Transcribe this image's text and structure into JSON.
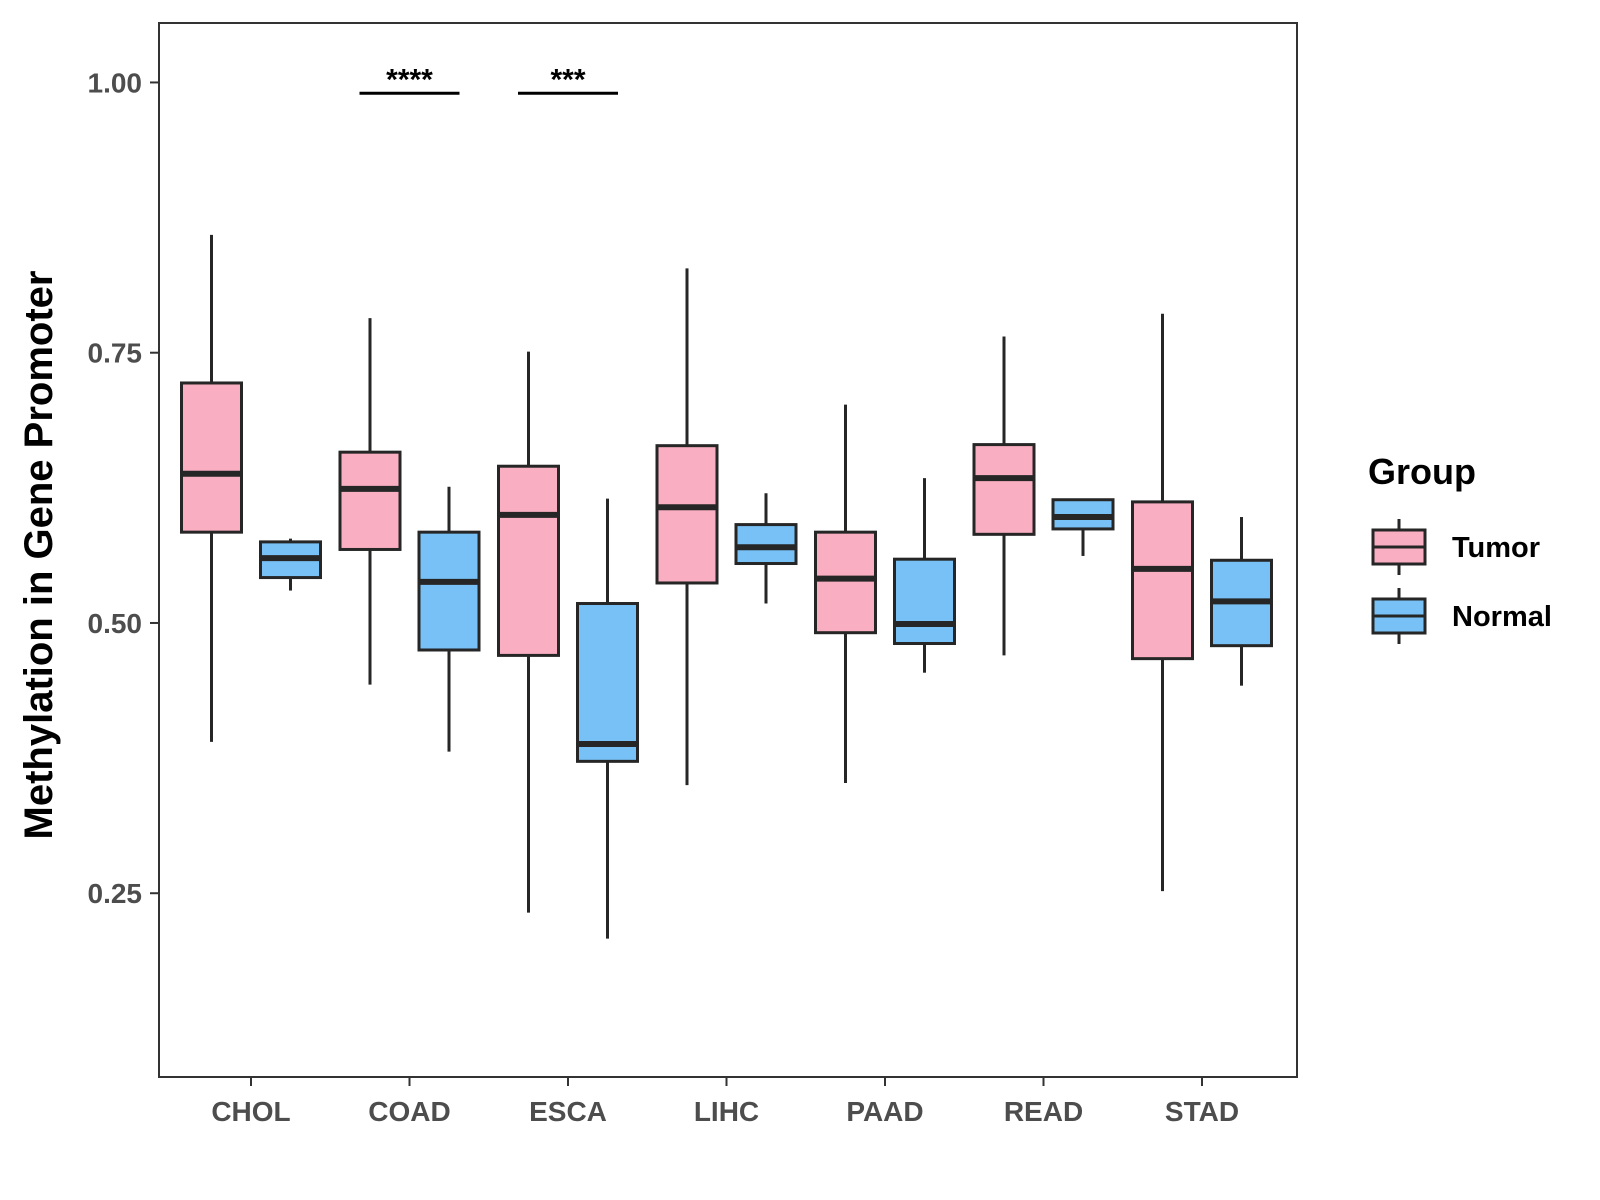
{
  "chart_data": {
    "type": "boxplot",
    "title": "",
    "xlabel": "",
    "ylabel": "Methylation in Gene Promoter",
    "ylim": [
      0.08,
      1.055
    ],
    "yticks": [
      0.25,
      0.5,
      0.75,
      1.0
    ],
    "ytick_labels": [
      "0.25",
      "0.50",
      "0.75",
      "1.00"
    ],
    "categories": [
      "CHOL",
      "COAD",
      "ESCA",
      "LIHC",
      "PAAD",
      "READ",
      "STAD"
    ],
    "legend": {
      "title": "Group",
      "position": "right",
      "entries": [
        "Tumor",
        "Normal"
      ]
    },
    "colors": {
      "Tumor": "#f9afc1",
      "Normal": "#77c1f7",
      "outline": "#262626"
    },
    "series": [
      {
        "name": "Tumor",
        "boxes": [
          {
            "category": "CHOL",
            "min": 0.39,
            "q1": 0.584,
            "median": 0.638,
            "q3": 0.722,
            "max": 0.859
          },
          {
            "category": "COAD",
            "min": 0.443,
            "q1": 0.568,
            "median": 0.624,
            "q3": 0.658,
            "max": 0.782
          },
          {
            "category": "ESCA",
            "min": 0.232,
            "q1": 0.47,
            "median": 0.6,
            "q3": 0.645,
            "max": 0.751
          },
          {
            "category": "LIHC",
            "min": 0.35,
            "q1": 0.537,
            "median": 0.607,
            "q3": 0.664,
            "max": 0.828
          },
          {
            "category": "PAAD",
            "min": 0.352,
            "q1": 0.491,
            "median": 0.541,
            "q3": 0.584,
            "max": 0.702
          },
          {
            "category": "READ",
            "min": 0.47,
            "q1": 0.582,
            "median": 0.634,
            "q3": 0.665,
            "max": 0.765
          },
          {
            "category": "STAD",
            "min": 0.252,
            "q1": 0.467,
            "median": 0.55,
            "q3": 0.612,
            "max": 0.786
          }
        ]
      },
      {
        "name": "Normal",
        "boxes": [
          {
            "category": "CHOL",
            "min": 0.53,
            "q1": 0.542,
            "median": 0.56,
            "q3": 0.575,
            "max": 0.578
          },
          {
            "category": "COAD",
            "min": 0.381,
            "q1": 0.475,
            "median": 0.538,
            "q3": 0.584,
            "max": 0.626
          },
          {
            "category": "ESCA",
            "min": 0.208,
            "q1": 0.372,
            "median": 0.388,
            "q3": 0.518,
            "max": 0.615
          },
          {
            "category": "LIHC",
            "min": 0.518,
            "q1": 0.555,
            "median": 0.57,
            "q3": 0.591,
            "max": 0.62
          },
          {
            "category": "PAAD",
            "min": 0.454,
            "q1": 0.481,
            "median": 0.499,
            "q3": 0.559,
            "max": 0.634
          },
          {
            "category": "READ",
            "min": 0.562,
            "q1": 0.587,
            "median": 0.598,
            "q3": 0.614,
            "max": 0.614
          },
          {
            "category": "STAD",
            "min": 0.442,
            "q1": 0.479,
            "median": 0.52,
            "q3": 0.558,
            "max": 0.598
          }
        ]
      }
    ],
    "annotations": [
      {
        "category": "COAD",
        "label": "****",
        "y": 0.99
      },
      {
        "category": "ESCA",
        "label": "***",
        "y": 0.99
      }
    ]
  }
}
